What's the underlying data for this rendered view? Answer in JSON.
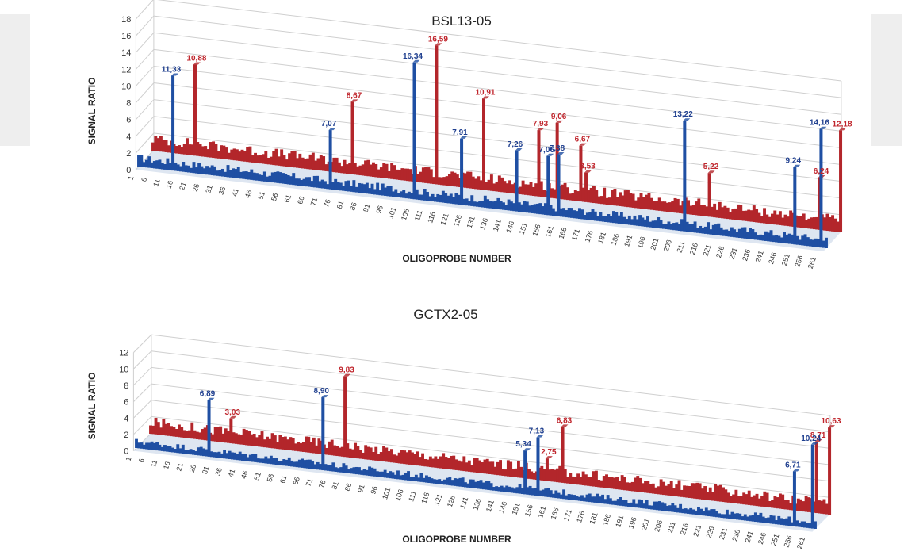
{
  "colors": {
    "series_a": "#1f4fa3",
    "series_b": "#b3262b",
    "floor": "#c8d6e8",
    "grid": "#cfcfcf"
  },
  "chart_data": [
    {
      "type": "bar",
      "view": "3d",
      "title": "BSL13-05",
      "xlabel": "OLIGOPROBE NUMBER",
      "ylabel": "SIGNAL RATIO",
      "ylim": [
        0,
        18
      ],
      "yticks": [
        "0",
        "2",
        "4",
        "6",
        "8",
        "10",
        "12",
        "14",
        "16",
        "18"
      ],
      "xrange": [
        1,
        263
      ],
      "xticks": [
        "1",
        "6",
        "11",
        "16",
        "21",
        "26",
        "31",
        "36",
        "41",
        "46",
        "51",
        "56",
        "61",
        "66",
        "71",
        "76",
        "81",
        "86",
        "91",
        "96",
        "101",
        "106",
        "111",
        "116",
        "121",
        "126",
        "131",
        "136",
        "141",
        "146",
        "151",
        "156",
        "161",
        "166",
        "171",
        "176",
        "181",
        "186",
        "191",
        "196",
        "201",
        "206",
        "211",
        "216",
        "221",
        "226",
        "231",
        "236",
        "241",
        "246",
        "251",
        "256",
        "261"
      ],
      "baseline": {
        "front": 1.0,
        "back": 1.4
      },
      "series": [
        {
          "name": "",
          "depth": "front",
          "peaks": [
            {
              "x": 14,
              "value": 11.33,
              "label": "11,33"
            },
            {
              "x": 74,
              "value": 7.07,
              "label": "7,07"
            },
            {
              "x": 106,
              "value": 16.34,
              "label": "16,34"
            },
            {
              "x": 124,
              "value": 7.91,
              "label": "7,91"
            },
            {
              "x": 145,
              "value": 7.26,
              "label": "7,26"
            },
            {
              "x": 157,
              "value": 7.06,
              "label": "7,06"
            },
            {
              "x": 161,
              "value": 7.38,
              "label": "7,38"
            },
            {
              "x": 209,
              "value": 13.22,
              "label": "13,22"
            },
            {
              "x": 251,
              "value": 9.24,
              "label": "9,24"
            },
            {
              "x": 261,
              "value": 14.16,
              "label": "14,16"
            }
          ]
        },
        {
          "name": "",
          "depth": "back",
          "peaks": [
            {
              "x": 17,
              "value": 10.88,
              "label": "10,88"
            },
            {
              "x": 77,
              "value": 8.67,
              "label": "8,67"
            },
            {
              "x": 109,
              "value": 16.59,
              "label": "16,59"
            },
            {
              "x": 127,
              "value": 10.91,
              "label": "10,91"
            },
            {
              "x": 148,
              "value": 7.93,
              "label": "7,93"
            },
            {
              "x": 155,
              "value": 9.06,
              "label": "9,06"
            },
            {
              "x": 164,
              "value": 6.67,
              "label": "6,67"
            },
            {
              "x": 166,
              "value": 3.53,
              "label": "3,53"
            },
            {
              "x": 213,
              "value": 5.22,
              "label": "5,22"
            },
            {
              "x": 255,
              "value": 6.24,
              "label": "6,24"
            },
            {
              "x": 263,
              "value": 12.18,
              "label": "12,18"
            }
          ]
        }
      ]
    },
    {
      "type": "bar",
      "view": "3d",
      "title": "GCTX2-05",
      "xlabel": "OLIGOPROBE NUMBER",
      "ylabel": "SIGNAL RATIO",
      "ylim": [
        0,
        12
      ],
      "yticks": [
        "0",
        "2",
        "4",
        "6",
        "8",
        "10",
        "12"
      ],
      "xrange": [
        1,
        263
      ],
      "xticks": [
        "1",
        "6",
        "11",
        "16",
        "21",
        "26",
        "31",
        "36",
        "41",
        "46",
        "51",
        "56",
        "61",
        "66",
        "71",
        "76",
        "81",
        "86",
        "91",
        "96",
        "101",
        "106",
        "111",
        "116",
        "121",
        "126",
        "131",
        "136",
        "141",
        "146",
        "151",
        "156",
        "161",
        "166",
        "171",
        "176",
        "181",
        "186",
        "191",
        "196",
        "201",
        "206",
        "211",
        "216",
        "221",
        "226",
        "231",
        "236",
        "241",
        "246",
        "251",
        "256",
        "261"
      ],
      "baseline": {
        "front": 0.8,
        "back": 1.4
      },
      "series": [
        {
          "name": "",
          "depth": "front",
          "peaks": [
            {
              "x": 29,
              "value": 6.89,
              "label": "6,89"
            },
            {
              "x": 73,
              "value": 8.9,
              "label": "8,90"
            },
            {
              "x": 151,
              "value": 5.34,
              "label": "5,34"
            },
            {
              "x": 156,
              "value": 7.13,
              "label": "7,13"
            },
            {
              "x": 255,
              "value": 6.71,
              "label": "6,71"
            },
            {
              "x": 262,
              "value": 10.24,
              "label": "10,24"
            }
          ]
        },
        {
          "name": "",
          "depth": "back",
          "peaks": [
            {
              "x": 32,
              "value": 3.03,
              "label": "3,03"
            },
            {
              "x": 76,
              "value": 9.83,
              "label": "9,83"
            },
            {
              "x": 154,
              "value": 2.75,
              "label": "2,75"
            },
            {
              "x": 160,
              "value": 6.83,
              "label": "6,83"
            },
            {
              "x": 258,
              "value": 8.71,
              "label": "8,71"
            },
            {
              "x": 263,
              "value": 10.63,
              "label": "10,63"
            }
          ]
        }
      ]
    }
  ]
}
